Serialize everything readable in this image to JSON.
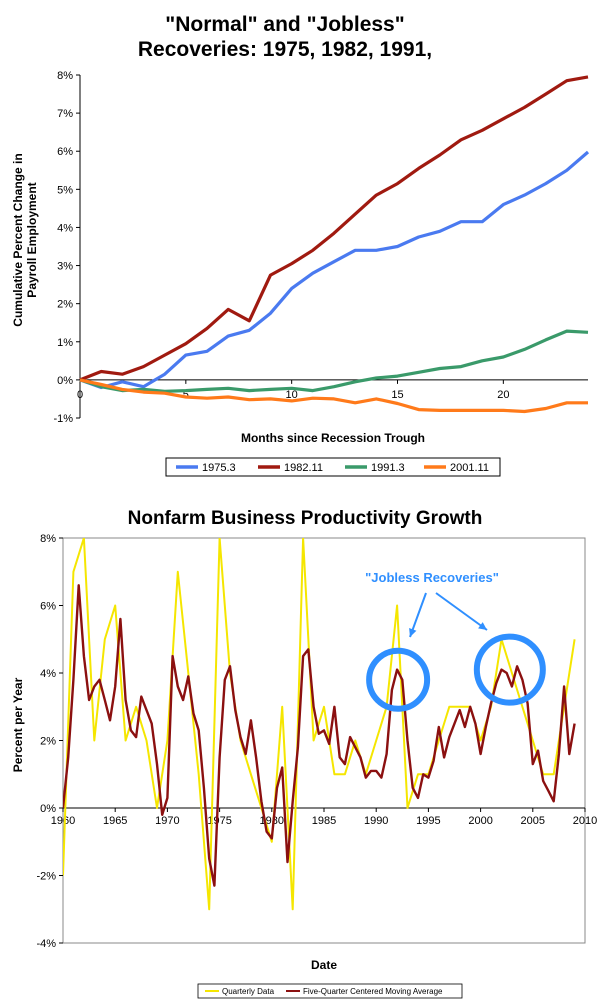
{
  "chart_data": [
    {
      "type": "line",
      "title": "\"Normal\" and \"Jobless\" Recoveries: 1975, 1982, 1991,",
      "xlabel": "Months since Recession Trough",
      "ylabel": "Cumulative Percent Change in Payroll Employment",
      "xlim": [
        0,
        24
      ],
      "ylim": [
        -1,
        8
      ],
      "x_ticks": [
        "0",
        "5",
        "10",
        "15",
        "20"
      ],
      "y_ticks": [
        "-1%",
        "0%",
        "1%",
        "2%",
        "3%",
        "4%",
        "5%",
        "6%",
        "7%",
        "8%"
      ],
      "grid": false,
      "legend_position": "bottom",
      "x": [
        0,
        1,
        2,
        3,
        4,
        5,
        6,
        7,
        8,
        9,
        10,
        11,
        12,
        13,
        14,
        15,
        16,
        17,
        18,
        19,
        20,
        21,
        22,
        23,
        24
      ],
      "series": [
        {
          "name": "1975.3",
          "color": "#4a7af0",
          "values": [
            0,
            -0.2,
            -0.05,
            -0.18,
            0.15,
            0.65,
            0.75,
            1.15,
            1.3,
            1.75,
            2.4,
            2.8,
            3.1,
            3.4,
            3.4,
            3.5,
            3.75,
            3.9,
            4.15,
            4.15,
            4.6,
            4.85,
            5.15,
            5.5,
            5.98
          ]
        },
        {
          "name": "1982.11",
          "color": "#a01a10",
          "values": [
            0,
            0.22,
            0.15,
            0.35,
            0.65,
            0.95,
            1.35,
            1.85,
            1.55,
            2.75,
            3.05,
            3.4,
            3.85,
            4.35,
            4.85,
            5.15,
            5.55,
            5.9,
            6.3,
            6.55,
            6.85,
            7.15,
            7.5,
            7.85,
            7.95
          ]
        },
        {
          "name": "1991.3",
          "color": "#3a9a6a",
          "values": [
            0,
            -0.18,
            -0.28,
            -0.25,
            -0.3,
            -0.28,
            -0.25,
            -0.22,
            -0.28,
            -0.25,
            -0.22,
            -0.28,
            -0.18,
            -0.05,
            0.05,
            0.1,
            0.2,
            0.3,
            0.35,
            0.5,
            0.6,
            0.8,
            1.05,
            1.28,
            1.25
          ]
        },
        {
          "name": "2001.11",
          "color": "#ff7a1a",
          "values": [
            0,
            -0.12,
            -0.25,
            -0.32,
            -0.35,
            -0.45,
            -0.48,
            -0.45,
            -0.52,
            -0.5,
            -0.55,
            -0.48,
            -0.5,
            -0.6,
            -0.5,
            -0.62,
            -0.78,
            -0.8,
            -0.8,
            -0.8,
            -0.8,
            -0.83,
            -0.75,
            -0.6,
            -0.6
          ]
        }
      ]
    },
    {
      "type": "line",
      "title": "Nonfarm Business Productivity Growth",
      "xlabel": "Date",
      "ylabel": "Percent per Year",
      "xlim": [
        1960,
        2010
      ],
      "ylim": [
        -4,
        8
      ],
      "x_ticks": [
        "1960",
        "1965",
        "1970",
        "1975",
        "1980",
        "1985",
        "1990",
        "1995",
        "2000",
        "2005",
        "2010"
      ],
      "y_ticks": [
        "-4%",
        "-2%",
        "0%",
        "2%",
        "4%",
        "6%",
        "8%"
      ],
      "grid": false,
      "legend_position": "bottom",
      "annotation": "\"Jobless Recoveries\"",
      "annotation_color": "#2f8fff",
      "circle_centers": [
        1992.1,
        2002.8
      ],
      "series": [
        {
          "name": "Quarterly Data",
          "color": "#f5e600",
          "x": [
            1960,
            1961,
            1962,
            1963,
            1964,
            1965,
            1966,
            1967,
            1968,
            1969,
            1970,
            1971,
            1972,
            1973,
            1974,
            1975,
            1976,
            1977,
            1978,
            1979,
            1980,
            1981,
            1982,
            1983,
            1984,
            1985,
            1986,
            1987,
            1988,
            1989,
            1990,
            1991,
            1992,
            1993,
            1994,
            1995,
            1996,
            1997,
            1998,
            1999,
            2000,
            2001,
            2002,
            2003,
            2004,
            2005,
            2006,
            2007,
            2008,
            2009
          ],
          "values": [
            -2,
            7,
            8,
            2,
            5,
            6,
            2,
            3,
            2,
            0,
            2,
            7,
            4,
            1,
            -3,
            8,
            4,
            2,
            1,
            0,
            -1,
            3,
            -3,
            8,
            2,
            3,
            1,
            1,
            2,
            1,
            2,
            3,
            6,
            0,
            1,
            1,
            2,
            3,
            3,
            3,
            2,
            3,
            5,
            4,
            3,
            2,
            1,
            1,
            3,
            5
          ]
        },
        {
          "name": "Five-Quarter Centered Moving Average",
          "color": "#8b1010",
          "x": [
            1960,
            1960.5,
            1961,
            1961.5,
            1962,
            1962.5,
            1963,
            1963.5,
            1964,
            1964.5,
            1965,
            1965.5,
            1966,
            1966.5,
            1967,
            1967.5,
            1968,
            1968.5,
            1969,
            1969.5,
            1970,
            1970.5,
            1971,
            1971.5,
            1972,
            1972.5,
            1973,
            1973.5,
            1974,
            1974.5,
            1975,
            1975.5,
            1976,
            1976.5,
            1977,
            1977.5,
            1978,
            1978.5,
            1979,
            1979.5,
            1980,
            1980.5,
            1981,
            1981.5,
            1982,
            1982.5,
            1983,
            1983.5,
            1984,
            1984.5,
            1985,
            1985.5,
            1986,
            1986.5,
            1987,
            1987.5,
            1988,
            1988.5,
            1989,
            1989.5,
            1990,
            1990.5,
            1991,
            1991.5,
            1992,
            1992.5,
            1993,
            1993.5,
            1994,
            1994.5,
            1995,
            1995.5,
            1996,
            1996.5,
            1997,
            1997.5,
            1998,
            1998.5,
            1999,
            1999.5,
            2000,
            2000.5,
            2001,
            2001.5,
            2002,
            2002.5,
            2003,
            2003.5,
            2004,
            2004.5,
            2005,
            2005.5,
            2006,
            2006.5,
            2007,
            2007.5,
            2008,
            2008.5,
            2009
          ],
          "values": [
            0,
            1.5,
            3.8,
            6.6,
            4.5,
            3.2,
            3.6,
            3.8,
            3.2,
            2.6,
            3.6,
            5.6,
            3.2,
            2.3,
            2.1,
            3.3,
            2.9,
            2.5,
            1.3,
            -0.2,
            0.3,
            4.5,
            3.6,
            3.2,
            3.9,
            2.8,
            2.3,
            0.6,
            -1.5,
            -2.3,
            1.5,
            3.8,
            4.2,
            2.9,
            2.1,
            1.6,
            2.6,
            1.5,
            0.2,
            -0.7,
            -0.9,
            0.6,
            1.2,
            -1.6,
            0.2,
            1.8,
            4.5,
            4.7,
            3.0,
            2.2,
            2.3,
            1.9,
            3.0,
            1.5,
            1.3,
            2.1,
            1.8,
            1.5,
            0.9,
            1.1,
            1.1,
            0.9,
            1.6,
            3.5,
            4.1,
            3.8,
            2.0,
            0.6,
            0.3,
            1.0,
            0.9,
            1.4,
            2.4,
            1.5,
            2.1,
            2.5,
            2.9,
            2.4,
            3.0,
            2.5,
            1.6,
            2.4,
            3.1,
            3.7,
            4.1,
            4.0,
            3.6,
            4.2,
            3.8,
            3.1,
            1.3,
            1.7,
            0.8,
            0.5,
            0.2,
            1.6,
            3.6,
            1.6,
            2.5
          ]
        }
      ]
    }
  ]
}
